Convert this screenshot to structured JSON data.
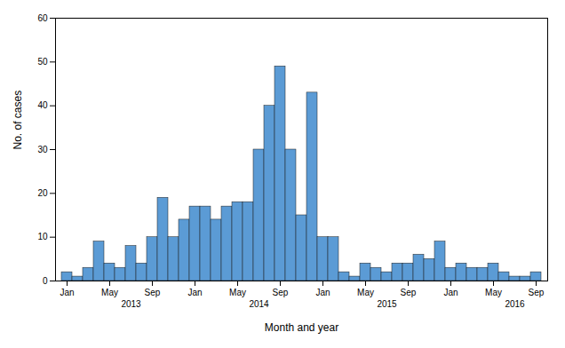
{
  "chart_data": {
    "type": "bar",
    "categories": [
      "Jan",
      null,
      null,
      null,
      "May",
      null,
      null,
      null,
      "Sep",
      null,
      null,
      null,
      "Jan",
      null,
      null,
      null,
      "May",
      null,
      null,
      null,
      "Sep",
      null,
      null,
      null,
      "Jan",
      null,
      null,
      null,
      "May",
      null,
      null,
      null,
      "Sep",
      null,
      null,
      null,
      "Jan",
      null,
      null,
      null,
      "May",
      null,
      null,
      null,
      "Sep"
    ],
    "values": [
      2,
      1,
      3,
      9,
      4,
      3,
      8,
      4,
      10,
      19,
      10,
      14,
      17,
      17,
      14,
      17,
      18,
      18,
      30,
      40,
      49,
      30,
      15,
      43,
      10,
      10,
      2,
      1,
      4,
      3,
      2,
      4,
      4,
      6,
      5,
      9,
      3,
      4,
      3,
      3,
      4,
      2,
      1,
      1,
      2
    ],
    "color": "#5B9BD5",
    "xlabel": "Month and year",
    "ylabel": "No. of cases",
    "ylim": [
      0,
      60
    ],
    "yticks": [
      0,
      10,
      20,
      30,
      40,
      50,
      60
    ],
    "annotations": [
      {
        "text": "2013",
        "x": 6
      },
      {
        "text": "2014",
        "x": 18
      },
      {
        "text": "2015",
        "x": 30
      },
      {
        "text": "2016",
        "x": 42
      }
    ],
    "grid": false
  }
}
